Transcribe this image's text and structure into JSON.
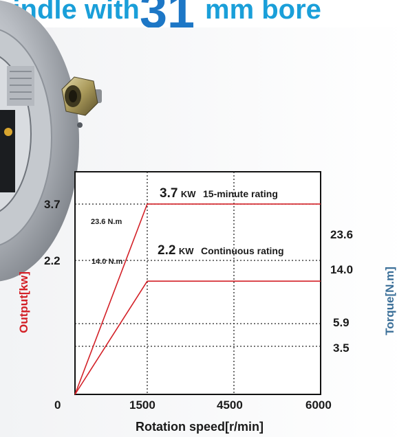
{
  "headline": {
    "left_text": "pindle with",
    "number": "31",
    "right_text": "mm bore"
  },
  "colors": {
    "output": "#d32027",
    "torque": "#3b6f98",
    "headline": "#1a9fd9",
    "frame": "#111111"
  },
  "chart_data": {
    "type": "line",
    "xlabel": "Rotation speed[r/min]",
    "ylabel_left": "Output[kw]",
    "ylabel_right": "Torque[N.m]",
    "x_tick_labels": [
      "0",
      "1500",
      "4500",
      "6000"
    ],
    "left_tick_labels": [
      "3.7",
      "2.2"
    ],
    "right_tick_labels": [
      "23.6",
      "14.0",
      "5.9",
      "3.5"
    ],
    "series": [
      {
        "name": "15-minute rating",
        "axis": "output",
        "rating_value": "3.7",
        "rating_unit": "KW",
        "points": [
          [
            0,
            0
          ],
          [
            1500,
            3.7
          ],
          [
            6000,
            3.7
          ]
        ]
      },
      {
        "name": "Continuous rating",
        "axis": "output",
        "rating_value": "2.2",
        "rating_unit": "KW",
        "points": [
          [
            0,
            0
          ],
          [
            1500,
            2.2
          ],
          [
            6000,
            2.2
          ]
        ]
      },
      {
        "name": "23.6 N.m",
        "axis": "torque",
        "points": [
          [
            0,
            23.6
          ],
          [
            1500,
            23.6
          ],
          [
            6000,
            5.9
          ]
        ]
      },
      {
        "name": "14.0 N.m",
        "axis": "torque",
        "points": [
          [
            0,
            14.0
          ],
          [
            1500,
            14.0
          ],
          [
            6000,
            3.5
          ]
        ]
      }
    ]
  }
}
